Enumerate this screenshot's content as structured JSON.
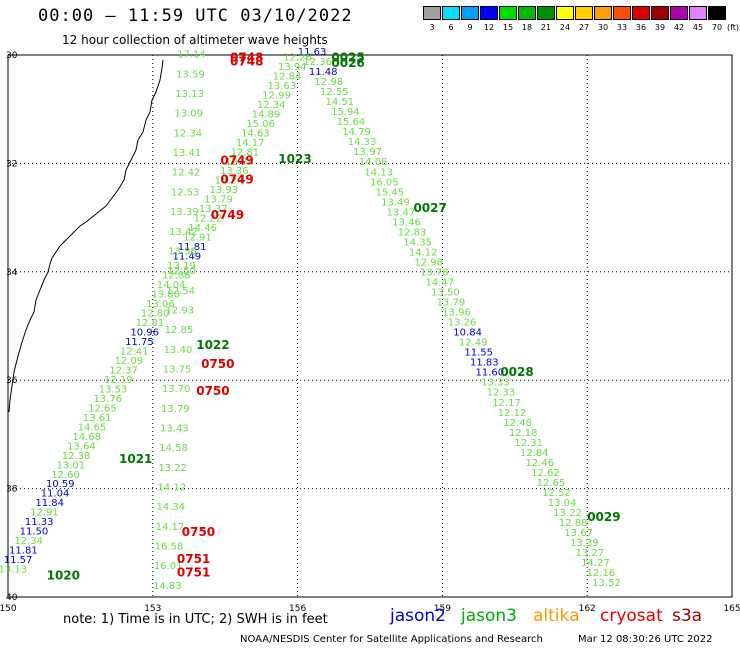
{
  "header": {
    "title": "00:00 – 11:59 UTC 03/10/2022",
    "subtitle": "12 hour collection of altimeter wave heights"
  },
  "legend": {
    "unit_label": "(ft)",
    "bins": [
      {
        "label": "3",
        "color": "#a0a0a0"
      },
      {
        "label": "6",
        "color": "#00e0ff"
      },
      {
        "label": "9",
        "color": "#00a0ff"
      },
      {
        "label": "12",
        "color": "#0000ff"
      },
      {
        "label": "15",
        "color": "#00dd00"
      },
      {
        "label": "18",
        "color": "#00bb00"
      },
      {
        "label": "21",
        "color": "#009000"
      },
      {
        "label": "24",
        "color": "#ffff00"
      },
      {
        "label": "27",
        "color": "#ffd000"
      },
      {
        "label": "30",
        "color": "#ffa000"
      },
      {
        "label": "33",
        "color": "#ff5000"
      },
      {
        "label": "36",
        "color": "#e00000"
      },
      {
        "label": "39",
        "color": "#a00000"
      },
      {
        "label": "42",
        "color": "#b000b0"
      },
      {
        "label": "45",
        "color": "#e080ff"
      },
      {
        "label": "70",
        "color": "#000000"
      }
    ]
  },
  "axes": {
    "lat_labels": [
      "30",
      "32",
      "34",
      "36",
      "38",
      "40"
    ],
    "lon_labels": [
      "150",
      "153",
      "156",
      "159",
      "162",
      "165"
    ]
  },
  "colors": {
    "jason2": "#0000cc",
    "jason3": "#00aa00",
    "altika": "#ff9900",
    "cryosat": "#dd0000",
    "s3a": "#990000",
    "wave_text": "#66dd44",
    "time_label": "#007700",
    "coast": "#000000",
    "grid": "#000000"
  },
  "note": "note:  1) Time is in UTC;  2) SWH is in feet",
  "satellites": [
    {
      "name": "jason2",
      "color": "#0000cc"
    },
    {
      "name": "jason3",
      "color": "#00aa00"
    },
    {
      "name": "altika",
      "color": "#ff9900"
    },
    {
      "name": "cryosat",
      "color": "#dd0000"
    },
    {
      "name": "s3a",
      "color": "#990000"
    }
  ],
  "footer": {
    "credit": "NOAA/NESDIS Center for Satellite Applications and Research",
    "timestamp": "Mar 12 08:30:26 UTC 2022"
  },
  "map": {
    "lon_range": [
      150,
      165
    ],
    "lat_range": [
      30,
      40
    ],
    "pass_time_labels": [
      {
        "text": "0025",
        "sat": "jason3",
        "lat": 30.05,
        "lon": 156.7
      },
      {
        "text": "0026",
        "sat": "jason3",
        "lat": 30.15,
        "lon": 156.7
      },
      {
        "text": "0748",
        "sat": "cryosat",
        "lat": 30.05,
        "lon": 154.6
      },
      {
        "text": "0748",
        "sat": "cryosat",
        "lat": 30.12,
        "lon": 154.6
      },
      {
        "text": "0749",
        "sat": "cryosat",
        "lat": 31.95,
        "lon": 154.4
      },
      {
        "text": "0749",
        "sat": "cryosat",
        "lat": 32.3,
        "lon": 154.4
      },
      {
        "text": "0749",
        "sat": "cryosat",
        "lat": 32.95,
        "lon": 154.2
      },
      {
        "text": "1023",
        "sat": "jason3",
        "lat": 31.92,
        "lon": 155.6
      },
      {
        "text": "0027",
        "sat": "jason3",
        "lat": 32.82,
        "lon": 158.4
      },
      {
        "text": "1022",
        "sat": "jason3",
        "lat": 35.35,
        "lon": 153.9
      },
      {
        "text": "0750",
        "sat": "cryosat",
        "lat": 35.7,
        "lon": 154.0
      },
      {
        "text": "0750",
        "sat": "cryosat",
        "lat": 36.2,
        "lon": 153.9
      },
      {
        "text": "0028",
        "sat": "jason3",
        "lat": 35.85,
        "lon": 160.2
      },
      {
        "text": "1021",
        "sat": "jason3",
        "lat": 37.45,
        "lon": 152.3
      },
      {
        "text": "0029",
        "sat": "jason3",
        "lat": 38.52,
        "lon": 162.0
      },
      {
        "text": "0750",
        "sat": "cryosat",
        "lat": 38.8,
        "lon": 153.6
      },
      {
        "text": "0751",
        "sat": "cryosat",
        "lat": 39.3,
        "lon": 153.5
      },
      {
        "text": "0751",
        "sat": "cryosat",
        "lat": 39.55,
        "lon": 153.5
      },
      {
        "text": "1020",
        "sat": "jason3",
        "lat": 39.6,
        "lon": 150.8
      }
    ],
    "tracks": [
      {
        "name": "jason3-pass-0025-0029",
        "sat": "jason3",
        "start": {
          "lat": 30.0,
          "lon": 156.3
        },
        "end": {
          "lat": 39.8,
          "lon": 162.4
        },
        "values": [
          "11.63",
          "12.36",
          "11.48",
          "12.98",
          "12.55",
          "14.51",
          "15.94",
          "15.64",
          "14.79",
          "14.33",
          "13.97",
          "14.08",
          "14.13",
          "16.05",
          "15.45",
          "13.49",
          "13.47",
          "13.46",
          "12.83",
          "14.35",
          "14.12",
          "12.98",
          "13.78",
          "14.47",
          "13.50",
          "13.79",
          "13.96",
          "13.26",
          "10.84",
          "12.49",
          "11.55",
          "11.83",
          "11.60",
          "13.33",
          "12.33",
          "12.17",
          "12.12",
          "12.48",
          "12.18",
          "12.31",
          "12.84",
          "12.46",
          "12.62",
          "12.65",
          "12.52",
          "13.04",
          "13.22",
          "12.88",
          "13.67",
          "13.39",
          "13.27",
          "14.27",
          "12.16",
          "13.52"
        ]
      },
      {
        "name": "jason3-pass-1020-1023",
        "sat": "jason3",
        "start": {
          "lat": 39.55,
          "lon": 150.1
        },
        "end": {
          "lat": 30.1,
          "lon": 156.0
        },
        "values": [
          "13.13",
          "11.57",
          "11.81",
          "12.34",
          "11.50",
          "11.33",
          "12.91",
          "11.84",
          "11.04",
          "10.59",
          "12.60",
          "13.01",
          "12.38",
          "13.64",
          "14.68",
          "14.65",
          "13.61",
          "12.65",
          "13.76",
          "13.53",
          "12.19",
          "12.37",
          "12.09",
          "12.41",
          "11.75",
          "10.96",
          "12.81",
          "12.80",
          "13.06",
          "13.80",
          "14.04",
          "12.88",
          "13.19",
          "11.49",
          "11.81",
          "12.91",
          "14.46",
          "12.22",
          "13.37",
          "13.79",
          "13.93",
          "14.24",
          "13.36",
          "12.74",
          "12.81",
          "14.17",
          "14.63",
          "15.06",
          "14.89",
          "12.34",
          "12.99",
          "13.63",
          "12.84",
          "13.94",
          "12.26"
        ]
      },
      {
        "name": "cryosat-pass-0748-0751",
        "sat": "cryosat",
        "start": {
          "lat": 30.05,
          "lon": 153.8
        },
        "end": {
          "lat": 39.85,
          "lon": 153.3
        },
        "values": [
          "17.14",
          "13.59",
          "13.13",
          "13.09",
          "12.34",
          "13.41",
          "12.42",
          "12.53",
          "13.39",
          "13.42",
          "13.36",
          "12.50",
          "12.54",
          "12.93",
          "12.85",
          "13.40",
          "13.75",
          "13.70",
          "13.79",
          "13.43",
          "14.58",
          "13.22",
          "14.12",
          "14.34",
          "14.17",
          "16.58",
          "16.01",
          "14.83"
        ]
      }
    ]
  }
}
